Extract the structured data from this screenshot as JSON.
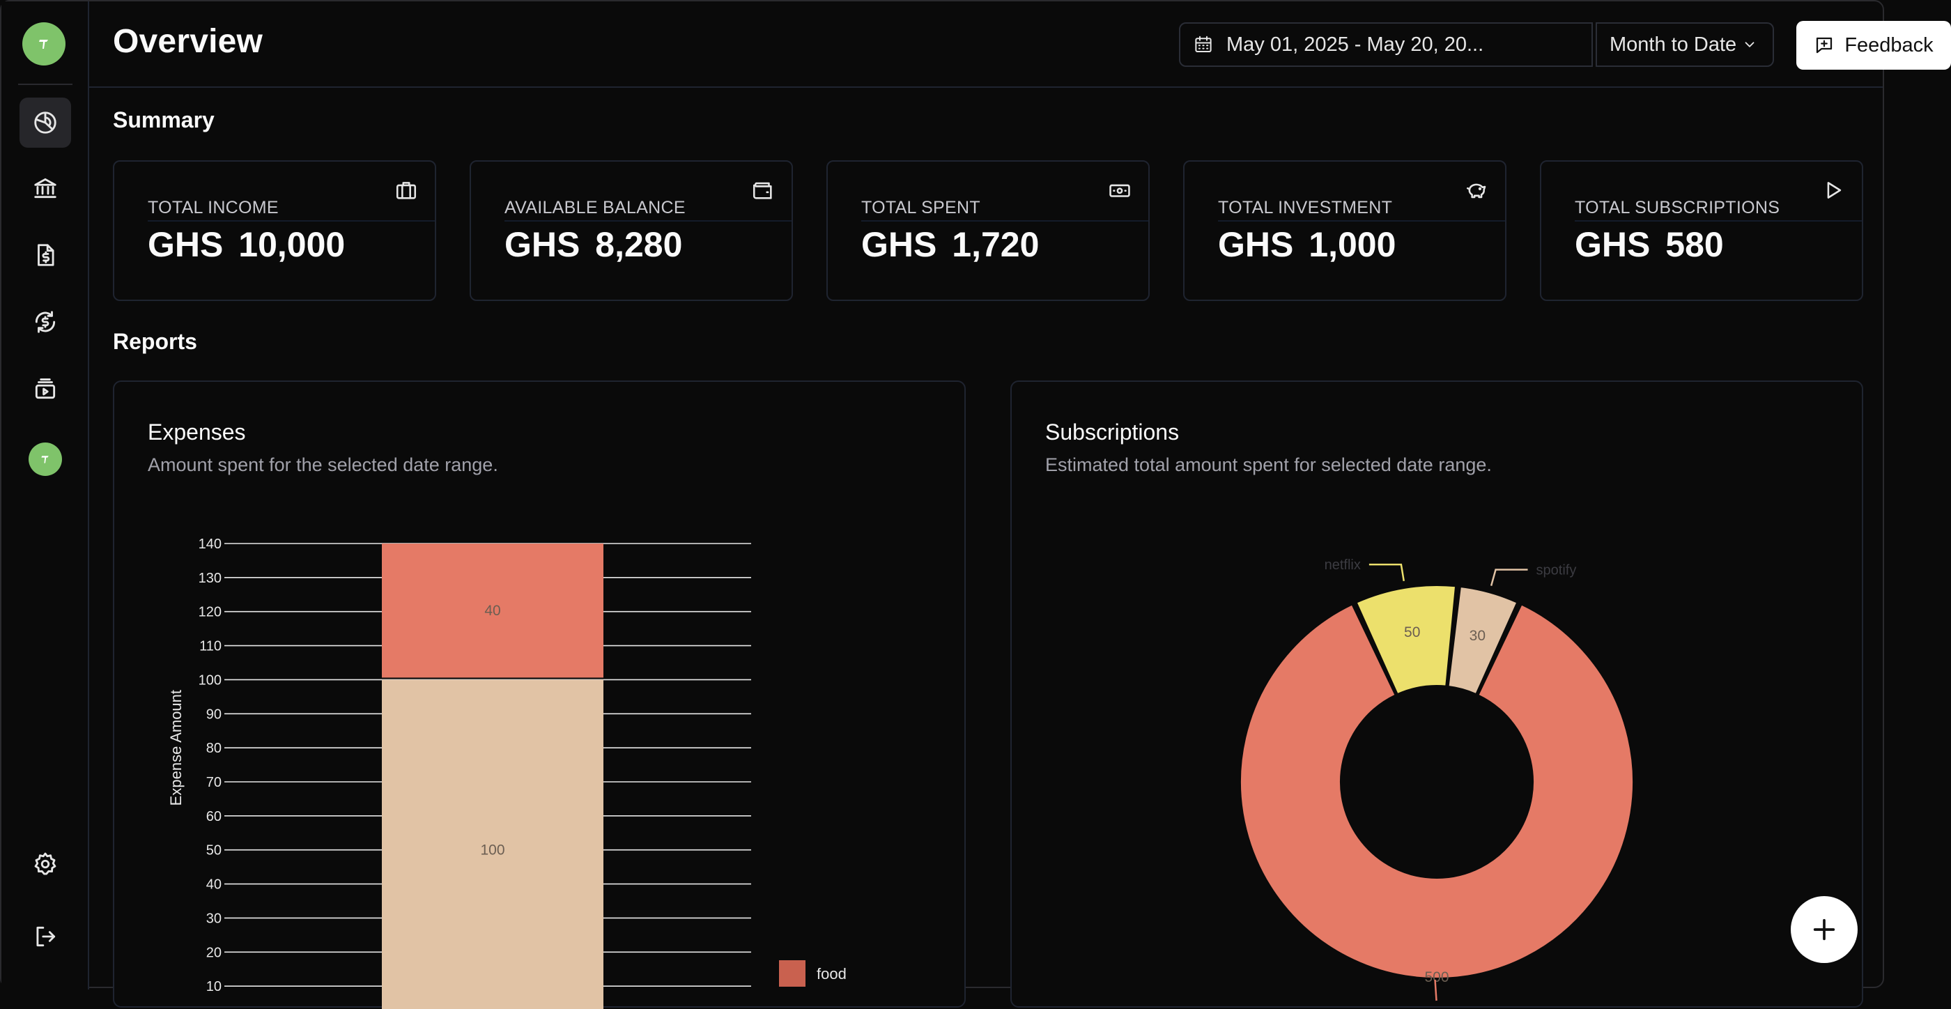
{
  "sidebar": {
    "logo": "app-logo",
    "items": [
      {
        "name": "overview",
        "icon": "chart-pie-icon",
        "active": true
      },
      {
        "name": "accounts",
        "icon": "bank-icon",
        "active": false
      },
      {
        "name": "expenses",
        "icon": "invoice-dollar-icon",
        "active": false
      },
      {
        "name": "subscriptions",
        "icon": "recurring-dollar-icon",
        "active": false
      },
      {
        "name": "media",
        "icon": "media-stack-icon",
        "active": false
      }
    ],
    "settings_icon": "gear-icon",
    "logout_icon": "logout-icon"
  },
  "header": {
    "title": "Overview",
    "date_range": "May 01, 2025 - May 20, 20...",
    "period": "Month to Date",
    "feedback_label": "Feedback"
  },
  "summary": {
    "title": "Summary",
    "cards": [
      {
        "label": "TOTAL INCOME",
        "currency": "GHS",
        "amount": "10,000",
        "icon": "briefcase-icon"
      },
      {
        "label": "AVAILABLE BALANCE",
        "currency": "GHS",
        "amount": "8,280",
        "icon": "wallet-icon"
      },
      {
        "label": "TOTAL SPENT",
        "currency": "GHS",
        "amount": "1,720",
        "icon": "banknote-icon"
      },
      {
        "label": "TOTAL INVESTMENT",
        "currency": "GHS",
        "amount": "1,000",
        "icon": "piggy-bank-icon"
      },
      {
        "label": "TOTAL SUBSCRIPTIONS",
        "currency": "GHS",
        "amount": "580",
        "icon": "play-icon"
      }
    ]
  },
  "reports": {
    "title": "Reports",
    "expenses": {
      "title": "Expenses",
      "subtitle": "Amount spent for the selected date range."
    },
    "subscriptions": {
      "title": "Subscriptions",
      "subtitle": "Estimated total amount spent for selected date range."
    }
  },
  "colors": {
    "coral": "#e57a66",
    "tan": "#e1c3a5",
    "yellow": "#ece06c",
    "accent_green": "#7fc36a"
  },
  "chart_data": [
    {
      "type": "bar",
      "stacked": true,
      "ylabel": "Expense Amount",
      "ylim": [
        0,
        140
      ],
      "yticks": [
        10,
        20,
        30,
        40,
        50,
        60,
        70,
        80,
        90,
        100,
        110,
        120,
        130,
        140
      ],
      "series": [
        {
          "name": "",
          "values": [
            100
          ],
          "color": "#e1c3a5"
        },
        {
          "name": "",
          "values": [
            40
          ],
          "color": "#e57a66"
        }
      ],
      "legend": [
        {
          "name": "food",
          "color": "#c9614f"
        }
      ],
      "legend_position": "bottom-right",
      "grid": true
    },
    {
      "type": "pie",
      "donut": true,
      "slices": [
        {
          "label": "",
          "value": 500,
          "color": "#e57a66"
        },
        {
          "label": "netflix",
          "value": 50,
          "color": "#ece06c"
        },
        {
          "label": "spotify",
          "value": 30,
          "color": "#e1c3a5"
        }
      ]
    }
  ],
  "fab_icon": "plus-icon"
}
